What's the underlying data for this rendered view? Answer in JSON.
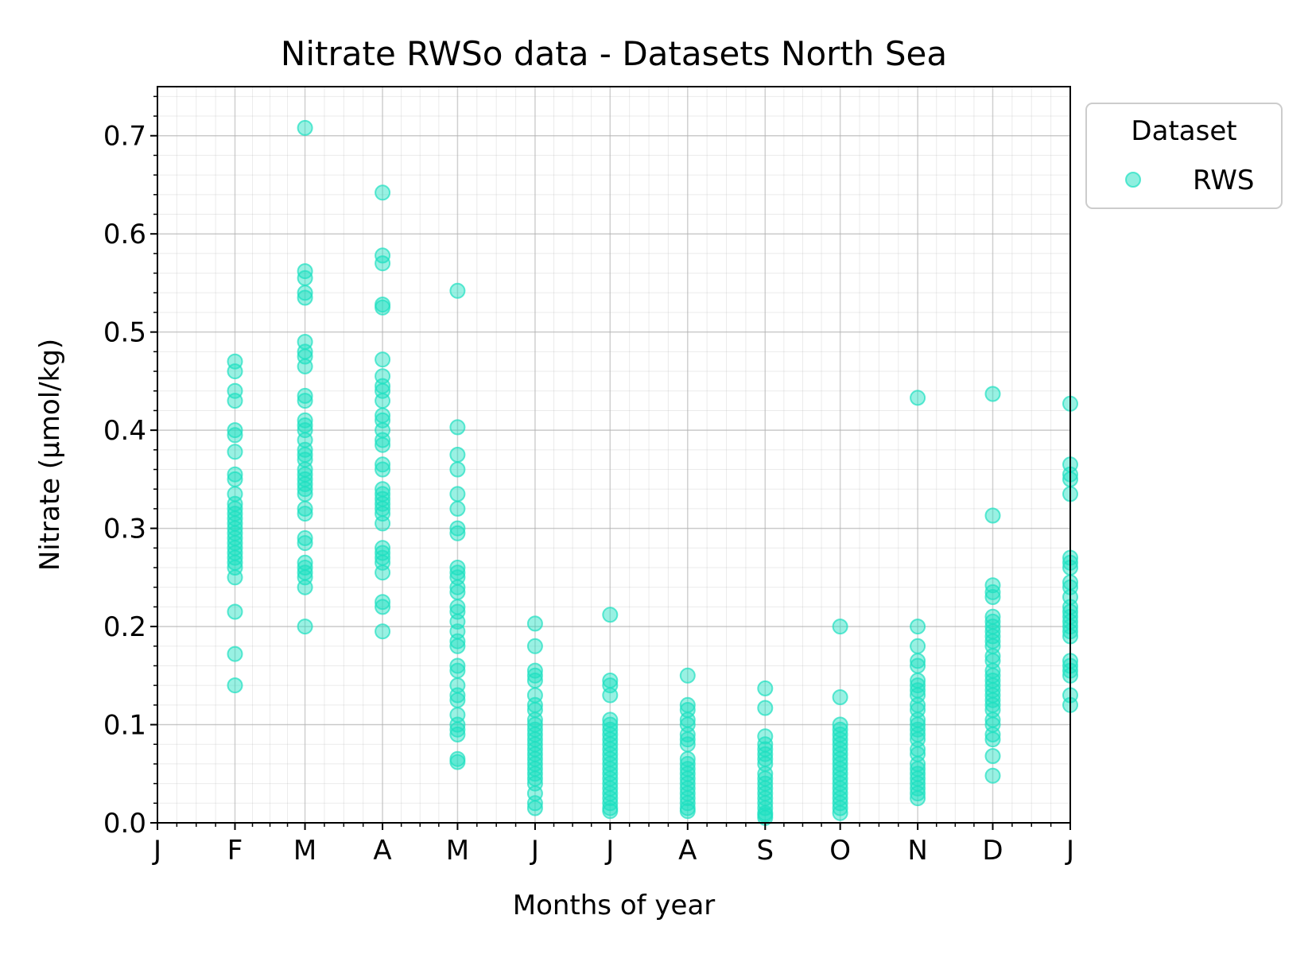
{
  "chart_data": {
    "type": "scatter",
    "title": "Nitrate RWSo data - Datasets North Sea",
    "xlabel": "Months of year",
    "ylabel": "Nitrate (μmol/kg)",
    "x_unit": "day of year",
    "xlim": [
      1,
      366
    ],
    "ylim": [
      0.0,
      0.75
    ],
    "yticks": [
      "0.0",
      "0.1",
      "0.2",
      "0.3",
      "0.4",
      "0.5",
      "0.6",
      "0.7"
    ],
    "xtick_labels": [
      "J",
      "F",
      "M",
      "A",
      "M",
      "J",
      "J",
      "A",
      "S",
      "O",
      "N",
      "D",
      "J"
    ],
    "xtick_days": [
      1,
      32,
      60,
      91,
      121,
      152,
      182,
      213,
      244,
      274,
      305,
      335,
      366
    ],
    "grid": "on (major and minor)",
    "legend": {
      "title": "Dataset",
      "placement": "outside top-right"
    },
    "series": [
      {
        "name": "RWS",
        "color": "#1de0c0",
        "points": [
          [
            32,
            0.47
          ],
          [
            32,
            0.46
          ],
          [
            32,
            0.44
          ],
          [
            32,
            0.43
          ],
          [
            32,
            0.4
          ],
          [
            32,
            0.395
          ],
          [
            32,
            0.378
          ],
          [
            32,
            0.355
          ],
          [
            32,
            0.35
          ],
          [
            32,
            0.335
          ],
          [
            32,
            0.325
          ],
          [
            32,
            0.32
          ],
          [
            32,
            0.315
          ],
          [
            32,
            0.31
          ],
          [
            32,
            0.305
          ],
          [
            32,
            0.3
          ],
          [
            32,
            0.295
          ],
          [
            32,
            0.29
          ],
          [
            32,
            0.285
          ],
          [
            32,
            0.28
          ],
          [
            32,
            0.275
          ],
          [
            32,
            0.27
          ],
          [
            32,
            0.265
          ],
          [
            32,
            0.26
          ],
          [
            32,
            0.25
          ],
          [
            32,
            0.215
          ],
          [
            32,
            0.172
          ],
          [
            32,
            0.14
          ],
          [
            60,
            0.708
          ],
          [
            60,
            0.562
          ],
          [
            60,
            0.555
          ],
          [
            60,
            0.54
          ],
          [
            60,
            0.535
          ],
          [
            60,
            0.49
          ],
          [
            60,
            0.48
          ],
          [
            60,
            0.475
          ],
          [
            60,
            0.465
          ],
          [
            60,
            0.435
          ],
          [
            60,
            0.43
          ],
          [
            60,
            0.41
          ],
          [
            60,
            0.405
          ],
          [
            60,
            0.4
          ],
          [
            60,
            0.39
          ],
          [
            60,
            0.38
          ],
          [
            60,
            0.375
          ],
          [
            60,
            0.37
          ],
          [
            60,
            0.36
          ],
          [
            60,
            0.355
          ],
          [
            60,
            0.35
          ],
          [
            60,
            0.345
          ],
          [
            60,
            0.34
          ],
          [
            60,
            0.335
          ],
          [
            60,
            0.32
          ],
          [
            60,
            0.315
          ],
          [
            60,
            0.29
          ],
          [
            60,
            0.285
          ],
          [
            60,
            0.265
          ],
          [
            60,
            0.26
          ],
          [
            60,
            0.255
          ],
          [
            60,
            0.25
          ],
          [
            60,
            0.24
          ],
          [
            60,
            0.2
          ],
          [
            91,
            0.642
          ],
          [
            91,
            0.578
          ],
          [
            91,
            0.57
          ],
          [
            91,
            0.528
          ],
          [
            91,
            0.525
          ],
          [
            91,
            0.472
          ],
          [
            91,
            0.455
          ],
          [
            91,
            0.445
          ],
          [
            91,
            0.44
          ],
          [
            91,
            0.43
          ],
          [
            91,
            0.415
          ],
          [
            91,
            0.41
          ],
          [
            91,
            0.4
          ],
          [
            91,
            0.39
          ],
          [
            91,
            0.385
          ],
          [
            91,
            0.365
          ],
          [
            91,
            0.36
          ],
          [
            91,
            0.34
          ],
          [
            91,
            0.335
          ],
          [
            91,
            0.33
          ],
          [
            91,
            0.325
          ],
          [
            91,
            0.32
          ],
          [
            91,
            0.315
          ],
          [
            91,
            0.305
          ],
          [
            91,
            0.28
          ],
          [
            91,
            0.275
          ],
          [
            91,
            0.27
          ],
          [
            91,
            0.265
          ],
          [
            91,
            0.255
          ],
          [
            91,
            0.225
          ],
          [
            91,
            0.22
          ],
          [
            91,
            0.195
          ],
          [
            121,
            0.542
          ],
          [
            121,
            0.403
          ],
          [
            121,
            0.375
          ],
          [
            121,
            0.36
          ],
          [
            121,
            0.335
          ],
          [
            121,
            0.32
          ],
          [
            121,
            0.3
          ],
          [
            121,
            0.295
          ],
          [
            121,
            0.26
          ],
          [
            121,
            0.255
          ],
          [
            121,
            0.25
          ],
          [
            121,
            0.24
          ],
          [
            121,
            0.235
          ],
          [
            121,
            0.22
          ],
          [
            121,
            0.215
          ],
          [
            121,
            0.205
          ],
          [
            121,
            0.195
          ],
          [
            121,
            0.185
          ],
          [
            121,
            0.18
          ],
          [
            121,
            0.16
          ],
          [
            121,
            0.155
          ],
          [
            121,
            0.14
          ],
          [
            121,
            0.13
          ],
          [
            121,
            0.125
          ],
          [
            121,
            0.11
          ],
          [
            121,
            0.1
          ],
          [
            121,
            0.095
          ],
          [
            121,
            0.09
          ],
          [
            121,
            0.065
          ],
          [
            121,
            0.062
          ],
          [
            152,
            0.203
          ],
          [
            152,
            0.18
          ],
          [
            152,
            0.155
          ],
          [
            152,
            0.15
          ],
          [
            152,
            0.145
          ],
          [
            152,
            0.13
          ],
          [
            152,
            0.12
          ],
          [
            152,
            0.115
          ],
          [
            152,
            0.105
          ],
          [
            152,
            0.1
          ],
          [
            152,
            0.095
          ],
          [
            152,
            0.09
          ],
          [
            152,
            0.085
          ],
          [
            152,
            0.08
          ],
          [
            152,
            0.075
          ],
          [
            152,
            0.07
          ],
          [
            152,
            0.065
          ],
          [
            152,
            0.06
          ],
          [
            152,
            0.055
          ],
          [
            152,
            0.05
          ],
          [
            152,
            0.045
          ],
          [
            152,
            0.04
          ],
          [
            152,
            0.03
          ],
          [
            152,
            0.02
          ],
          [
            152,
            0.015
          ],
          [
            182,
            0.212
          ],
          [
            182,
            0.145
          ],
          [
            182,
            0.14
          ],
          [
            182,
            0.13
          ],
          [
            182,
            0.105
          ],
          [
            182,
            0.1
          ],
          [
            182,
            0.095
          ],
          [
            182,
            0.09
          ],
          [
            182,
            0.085
          ],
          [
            182,
            0.08
          ],
          [
            182,
            0.075
          ],
          [
            182,
            0.07
          ],
          [
            182,
            0.065
          ],
          [
            182,
            0.06
          ],
          [
            182,
            0.055
          ],
          [
            182,
            0.05
          ],
          [
            182,
            0.045
          ],
          [
            182,
            0.04
          ],
          [
            182,
            0.035
          ],
          [
            182,
            0.03
          ],
          [
            182,
            0.025
          ],
          [
            182,
            0.02
          ],
          [
            182,
            0.015
          ],
          [
            182,
            0.012
          ],
          [
            213,
            0.15
          ],
          [
            213,
            0.12
          ],
          [
            213,
            0.115
          ],
          [
            213,
            0.105
          ],
          [
            213,
            0.1
          ],
          [
            213,
            0.09
          ],
          [
            213,
            0.085
          ],
          [
            213,
            0.08
          ],
          [
            213,
            0.065
          ],
          [
            213,
            0.06
          ],
          [
            213,
            0.055
          ],
          [
            213,
            0.05
          ],
          [
            213,
            0.045
          ],
          [
            213,
            0.04
          ],
          [
            213,
            0.035
          ],
          [
            213,
            0.03
          ],
          [
            213,
            0.025
          ],
          [
            213,
            0.02
          ],
          [
            213,
            0.015
          ],
          [
            213,
            0.012
          ],
          [
            244,
            0.137
          ],
          [
            244,
            0.117
          ],
          [
            244,
            0.088
          ],
          [
            244,
            0.08
          ],
          [
            244,
            0.075
          ],
          [
            244,
            0.07
          ],
          [
            244,
            0.065
          ],
          [
            244,
            0.06
          ],
          [
            244,
            0.05
          ],
          [
            244,
            0.045
          ],
          [
            244,
            0.04
          ],
          [
            244,
            0.035
          ],
          [
            244,
            0.03
          ],
          [
            244,
            0.025
          ],
          [
            244,
            0.02
          ],
          [
            244,
            0.015
          ],
          [
            244,
            0.01
          ],
          [
            244,
            0.008
          ],
          [
            244,
            0.005
          ],
          [
            274,
            0.2
          ],
          [
            274,
            0.128
          ],
          [
            274,
            0.1
          ],
          [
            274,
            0.095
          ],
          [
            274,
            0.09
          ],
          [
            274,
            0.085
          ],
          [
            274,
            0.08
          ],
          [
            274,
            0.075
          ],
          [
            274,
            0.07
          ],
          [
            274,
            0.065
          ],
          [
            274,
            0.06
          ],
          [
            274,
            0.055
          ],
          [
            274,
            0.05
          ],
          [
            274,
            0.045
          ],
          [
            274,
            0.04
          ],
          [
            274,
            0.035
          ],
          [
            274,
            0.03
          ],
          [
            274,
            0.025
          ],
          [
            274,
            0.02
          ],
          [
            274,
            0.015
          ],
          [
            274,
            0.01
          ],
          [
            305,
            0.433
          ],
          [
            305,
            0.2
          ],
          [
            305,
            0.18
          ],
          [
            305,
            0.165
          ],
          [
            305,
            0.16
          ],
          [
            305,
            0.145
          ],
          [
            305,
            0.14
          ],
          [
            305,
            0.135
          ],
          [
            305,
            0.13
          ],
          [
            305,
            0.12
          ],
          [
            305,
            0.115
          ],
          [
            305,
            0.105
          ],
          [
            305,
            0.1
          ],
          [
            305,
            0.095
          ],
          [
            305,
            0.09
          ],
          [
            305,
            0.085
          ],
          [
            305,
            0.075
          ],
          [
            305,
            0.07
          ],
          [
            305,
            0.06
          ],
          [
            305,
            0.055
          ],
          [
            305,
            0.05
          ],
          [
            305,
            0.045
          ],
          [
            305,
            0.04
          ],
          [
            305,
            0.035
          ],
          [
            305,
            0.03
          ],
          [
            305,
            0.025
          ],
          [
            335,
            0.437
          ],
          [
            335,
            0.313
          ],
          [
            335,
            0.242
          ],
          [
            335,
            0.235
          ],
          [
            335,
            0.23
          ],
          [
            335,
            0.21
          ],
          [
            335,
            0.205
          ],
          [
            335,
            0.2
          ],
          [
            335,
            0.195
          ],
          [
            335,
            0.19
          ],
          [
            335,
            0.185
          ],
          [
            335,
            0.18
          ],
          [
            335,
            0.17
          ],
          [
            335,
            0.165
          ],
          [
            335,
            0.155
          ],
          [
            335,
            0.15
          ],
          [
            335,
            0.145
          ],
          [
            335,
            0.14
          ],
          [
            335,
            0.135
          ],
          [
            335,
            0.13
          ],
          [
            335,
            0.125
          ],
          [
            335,
            0.12
          ],
          [
            335,
            0.115
          ],
          [
            335,
            0.105
          ],
          [
            335,
            0.1
          ],
          [
            335,
            0.09
          ],
          [
            335,
            0.085
          ],
          [
            335,
            0.068
          ],
          [
            335,
            0.048
          ],
          [
            366,
            0.427
          ],
          [
            366,
            0.365
          ],
          [
            366,
            0.355
          ],
          [
            366,
            0.35
          ],
          [
            366,
            0.335
          ],
          [
            366,
            0.27
          ],
          [
            366,
            0.265
          ],
          [
            366,
            0.26
          ],
          [
            366,
            0.245
          ],
          [
            366,
            0.24
          ],
          [
            366,
            0.23
          ],
          [
            366,
            0.22
          ],
          [
            366,
            0.215
          ],
          [
            366,
            0.21
          ],
          [
            366,
            0.205
          ],
          [
            366,
            0.2
          ],
          [
            366,
            0.195
          ],
          [
            366,
            0.19
          ],
          [
            366,
            0.165
          ],
          [
            366,
            0.16
          ],
          [
            366,
            0.155
          ],
          [
            366,
            0.15
          ],
          [
            366,
            0.13
          ],
          [
            366,
            0.12
          ]
        ]
      }
    ]
  }
}
